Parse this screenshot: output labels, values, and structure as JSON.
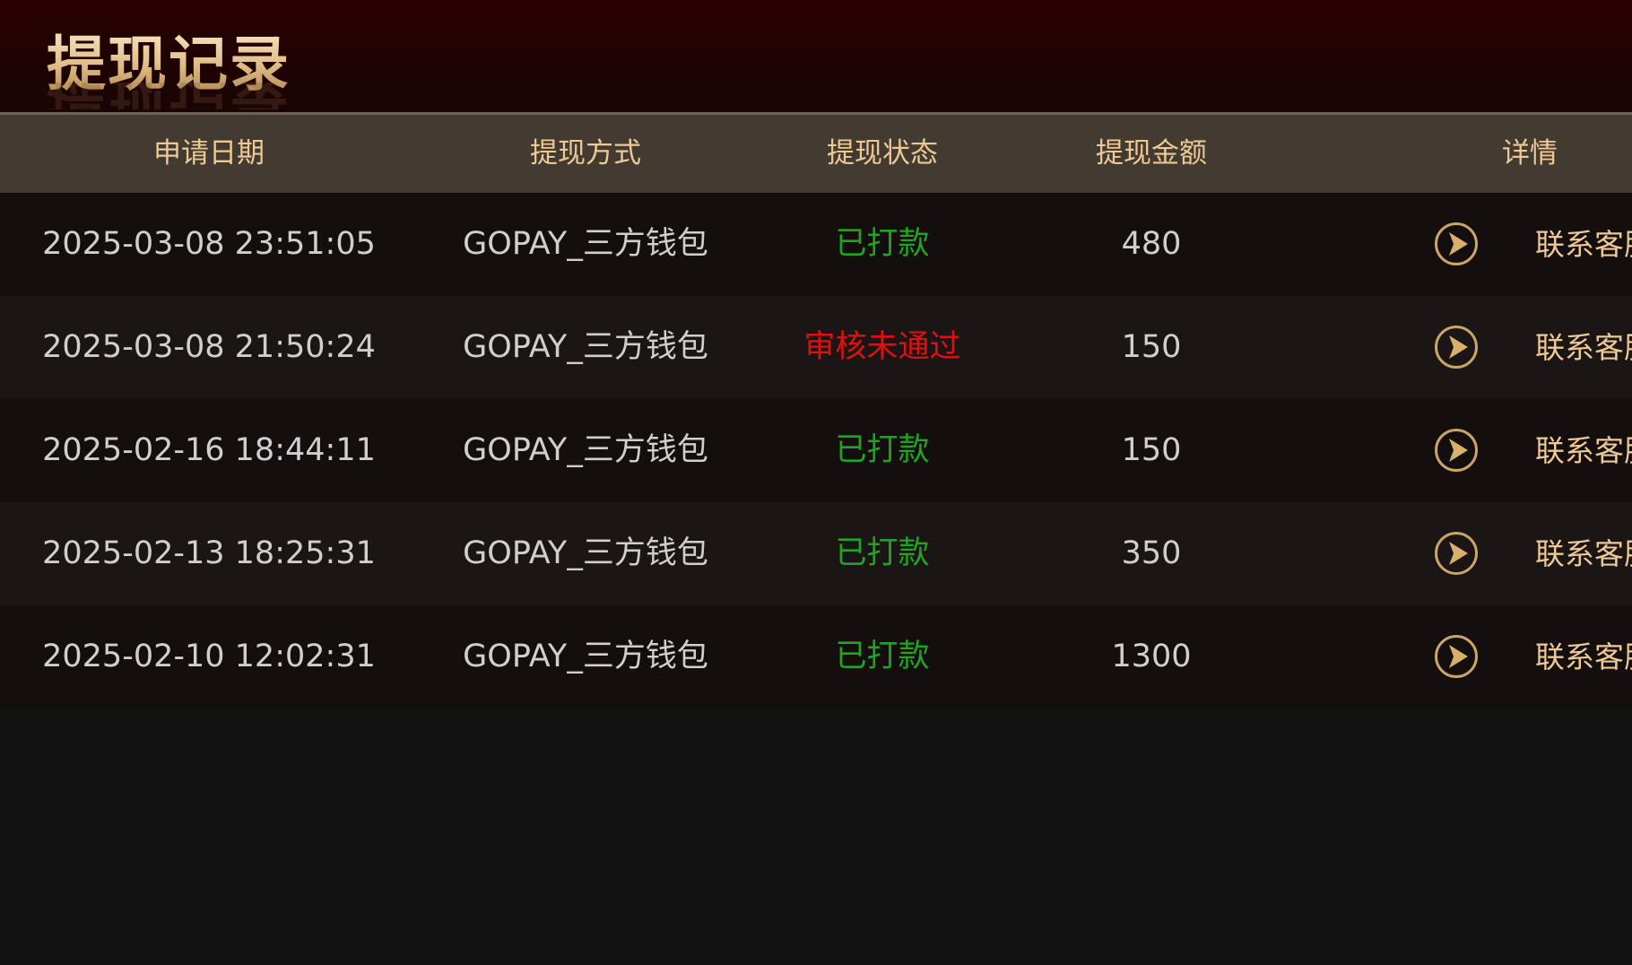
{
  "header": {
    "title": "提现记录"
  },
  "table": {
    "columns": [
      "申请日期",
      "提现方式",
      "提现状态",
      "提现金额",
      "详情"
    ],
    "rows": [
      {
        "date": "2025-03-08 23:51:05",
        "method": "GOPAY_三方钱包",
        "status": "已打款",
        "status_type": "success",
        "amount": "480",
        "contact": "联系客服"
      },
      {
        "date": "2025-03-08 21:50:24",
        "method": "GOPAY_三方钱包",
        "status": "审核未通过",
        "status_type": "failed",
        "amount": "150",
        "contact": "联系客服"
      },
      {
        "date": "2025-02-16 18:44:11",
        "method": "GOPAY_三方钱包",
        "status": "已打款",
        "status_type": "success",
        "amount": "150",
        "contact": "联系客服"
      },
      {
        "date": "2025-02-13 18:25:31",
        "method": "GOPAY_三方钱包",
        "status": "已打款",
        "status_type": "success",
        "amount": "350",
        "contact": "联系客服"
      },
      {
        "date": "2025-02-10 12:02:31",
        "method": "GOPAY_三方钱包",
        "status": "已打款",
        "status_type": "success",
        "amount": "1300",
        "contact": "联系客服"
      }
    ]
  },
  "colors": {
    "success": "#1fa51f",
    "failed": "#e01010",
    "accent": "#ecc995"
  },
  "icons": {
    "detail": "play-circle-icon"
  }
}
